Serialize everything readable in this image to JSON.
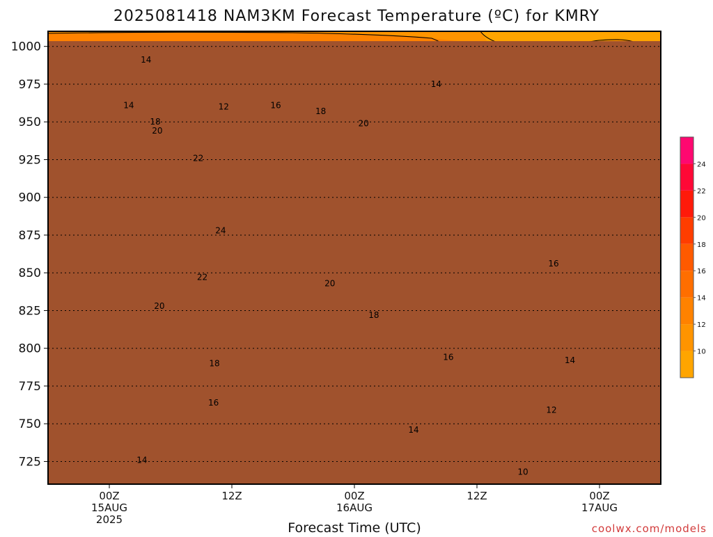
{
  "chart_data": {
    "type": "heatmap",
    "title": "2025081418 NAM3KM Forecast Temperature (ºC) for KMRY",
    "xlabel": "Forecast Time (UTC)",
    "ylabel": "",
    "credit": "coolwx.com/models",
    "y_axis": {
      "units": "hPa",
      "range": [
        1010,
        710
      ],
      "ticks": [
        725,
        750,
        775,
        800,
        825,
        850,
        875,
        900,
        925,
        950,
        975,
        1000
      ]
    },
    "x_axis": {
      "ticks": [
        {
          "lines": [
            "00Z",
            "15AUG",
            "2025"
          ],
          "hours": 6
        },
        {
          "lines": [
            "12Z"
          ],
          "hours": 18
        },
        {
          "lines": [
            "00Z",
            "16AUG"
          ],
          "hours": 30
        },
        {
          "lines": [
            "12Z"
          ],
          "hours": 42
        },
        {
          "lines": [
            "00Z",
            "17AUG"
          ],
          "hours": 54
        }
      ],
      "range_hours": [
        0,
        60
      ]
    },
    "grid": true,
    "colorbar": {
      "position": "right",
      "levels": [
        8,
        10,
        12,
        14,
        16,
        18,
        20,
        22,
        24,
        26
      ],
      "colors": [
        "#ffa500",
        "#ff9400",
        "#ff8200",
        "#ff6e00",
        "#ff5a00",
        "#ff3d00",
        "#ff1a0a",
        "#ff0836",
        "#ff0870"
      ],
      "labels": [
        "10",
        "12",
        "14",
        "16",
        "18",
        "20",
        "22",
        "24"
      ]
    },
    "contour_labels": [
      {
        "value": "10",
        "hours": 46.5,
        "hpa": 718
      },
      {
        "value": "12",
        "hours": 49.3,
        "hpa": 759
      },
      {
        "value": "14",
        "hours": 9.2,
        "hpa": 726
      },
      {
        "value": "14",
        "hours": 35.8,
        "hpa": 746
      },
      {
        "value": "14",
        "hours": 51.1,
        "hpa": 792
      },
      {
        "value": "16",
        "hours": 16.2,
        "hpa": 764
      },
      {
        "value": "16",
        "hours": 39.2,
        "hpa": 794
      },
      {
        "value": "16",
        "hours": 49.5,
        "hpa": 856
      },
      {
        "value": "18",
        "hours": 16.3,
        "hpa": 790
      },
      {
        "value": "18",
        "hours": 31.9,
        "hpa": 822
      },
      {
        "value": "20",
        "hours": 10.9,
        "hpa": 828
      },
      {
        "value": "20",
        "hours": 27.6,
        "hpa": 843
      },
      {
        "value": "22",
        "hours": 15.1,
        "hpa": 847
      },
      {
        "value": "24",
        "hours": 16.9,
        "hpa": 878
      },
      {
        "value": "22",
        "hours": 14.7,
        "hpa": 926
      },
      {
        "value": "20",
        "hours": 10.7,
        "hpa": 944
      },
      {
        "value": "18",
        "hours": 10.5,
        "hpa": 950
      },
      {
        "value": "20",
        "hours": 30.9,
        "hpa": 949
      },
      {
        "value": "18",
        "hours": 26.7,
        "hpa": 957
      },
      {
        "value": "16",
        "hours": 22.3,
        "hpa": 961
      },
      {
        "value": "14",
        "hours": 7.9,
        "hpa": 961
      },
      {
        "value": "12",
        "hours": 17.2,
        "hpa": 960
      },
      {
        "value": "14",
        "hours": 38.0,
        "hpa": 975
      },
      {
        "value": "14",
        "hours": 9.6,
        "hpa": 991
      }
    ],
    "ground": {
      "color": "#a0522d",
      "top_hpa": 1003.5
    }
  }
}
